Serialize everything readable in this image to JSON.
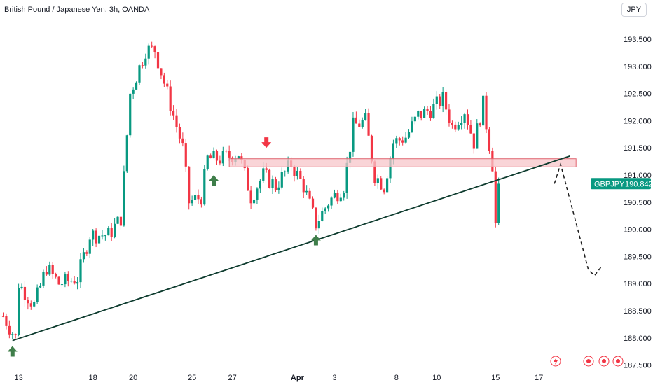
{
  "header": {
    "title": "British Pound / Japanese Yen, 3h, OANDA",
    "currency_label": "JPY"
  },
  "price_tag": {
    "symbol": "GBPJPY",
    "value": "190.842",
    "color": "#089981"
  },
  "colors": {
    "up": "#089981",
    "down": "#f23645",
    "trend": "#0d3b2e",
    "zone_fill": "#f7c6c9",
    "zone_border": "#e06570",
    "arrow_up": "#3f7e4a",
    "arrow_down": "#f23645"
  },
  "footer_icons": [
    "lightning-icon",
    "target-icon",
    "target-icon",
    "target-icon"
  ],
  "chart_data": {
    "type": "candlestick",
    "ylim": [
      187.5,
      193.7
    ],
    "y_ticks": [
      "193.500",
      "193.000",
      "192.500",
      "192.000",
      "191.500",
      "191.000",
      "190.500",
      "190.000",
      "189.500",
      "189.000",
      "188.500",
      "188.000",
      "187.500"
    ],
    "x_ticks": [
      {
        "label": "13",
        "idx": 5
      },
      {
        "label": "18",
        "idx": 29
      },
      {
        "label": "20",
        "idx": 42
      },
      {
        "label": "25",
        "idx": 61
      },
      {
        "label": "27",
        "idx": 74
      },
      {
        "label": "Apr",
        "idx": 95,
        "bold": true
      },
      {
        "label": "3",
        "idx": 107
      },
      {
        "label": "8",
        "idx": 127
      },
      {
        "label": "10",
        "idx": 140
      },
      {
        "label": "15",
        "idx": 159
      },
      {
        "label": "17",
        "idx": 173
      }
    ],
    "candle_count": 180,
    "path": [
      [
        0,
        188.4
      ],
      [
        4,
        188.0
      ],
      [
        5,
        189.0
      ],
      [
        10,
        188.6
      ],
      [
        14,
        189.3
      ],
      [
        18,
        189.0
      ],
      [
        24,
        189.1
      ],
      [
        28,
        189.9
      ],
      [
        34,
        189.9
      ],
      [
        38,
        190.2
      ],
      [
        41,
        192.5
      ],
      [
        46,
        193.3
      ],
      [
        49,
        193.3
      ],
      [
        54,
        192.3
      ],
      [
        58,
        191.5
      ],
      [
        60,
        190.5
      ],
      [
        64,
        190.6
      ],
      [
        66,
        191.3
      ],
      [
        70,
        191.3
      ],
      [
        76,
        191.4
      ],
      [
        80,
        190.6
      ],
      [
        84,
        191.0
      ],
      [
        88,
        190.8
      ],
      [
        93,
        191.2
      ],
      [
        97,
        190.8
      ],
      [
        101,
        190.1
      ],
      [
        105,
        190.5
      ],
      [
        110,
        190.8
      ],
      [
        113,
        191.9
      ],
      [
        117,
        192.0
      ],
      [
        120,
        191.0
      ],
      [
        123,
        190.8
      ],
      [
        126,
        191.6
      ],
      [
        130,
        191.7
      ],
      [
        134,
        192.1
      ],
      [
        138,
        192.2
      ],
      [
        142,
        192.4
      ],
      [
        145,
        191.9
      ],
      [
        149,
        192.2
      ],
      [
        152,
        191.6
      ],
      [
        155,
        192.3
      ],
      [
        158,
        191.2
      ],
      [
        159,
        190.1
      ],
      [
        160,
        190.84
      ]
    ],
    "support_trendline": [
      {
        "date": "Mar 12",
        "price": 187.95
      },
      {
        "date": "Apr 15",
        "price": 191.35
      }
    ],
    "resistance_zone": [
      191.15,
      191.3
    ],
    "projection": [
      [
        190.84,
        191.2
      ],
      [
        189.25,
        189.15
      ]
    ],
    "signals": [
      {
        "type": "buy",
        "idx": 3,
        "price": 187.9
      },
      {
        "type": "buy",
        "idx": 68,
        "price": 191.05
      },
      {
        "type": "sell",
        "idx": 85,
        "price": 191.45
      },
      {
        "type": "buy",
        "idx": 101,
        "price": 189.95
      }
    ]
  }
}
